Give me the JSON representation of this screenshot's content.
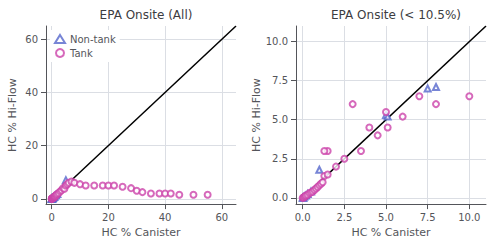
{
  "chart_data": [
    {
      "type": "scatter",
      "title": "EPA Onsite (All)",
      "xlabel": "HC % Canister",
      "ylabel": "HC % Hi-Flow",
      "xlim": [
        -2,
        65
      ],
      "ylim": [
        -2,
        65
      ],
      "xticks": [
        0,
        20,
        40,
        60
      ],
      "yticks": [
        0,
        20,
        40,
        60
      ],
      "grid": true,
      "legend": "upper left",
      "series": [
        {
          "type": "line",
          "color": "#000000",
          "line_style": "solid",
          "x": [
            0,
            65
          ],
          "values": [
            0,
            65
          ]
        },
        {
          "name": "Non-tank",
          "color": "#5566cc",
          "marker": "open_triangle",
          "x": [
            0.0,
            0.05,
            0.1,
            0.2,
            0.3,
            0.5,
            0.8,
            1.0,
            1.5,
            2.0,
            5.0
          ],
          "values": [
            0.0,
            0.05,
            0.08,
            0.15,
            0.25,
            0.4,
            0.7,
            0.9,
            1.3,
            1.8,
            7.0
          ]
        },
        {
          "name": "Tank",
          "color": "#cc44aa",
          "marker": "open_circle",
          "x": [
            0.0,
            0.05,
            0.1,
            0.15,
            0.2,
            0.3,
            0.4,
            0.5,
            0.6,
            0.7,
            0.8,
            0.9,
            1.0,
            1.1,
            1.2,
            1.5,
            1.7,
            2.0,
            2.5,
            3.0,
            3.5,
            4.0,
            4.5,
            5.0,
            5.5,
            6.0,
            7.0,
            8.0,
            10.0,
            12.0,
            15.0,
            18.0,
            20.0,
            22.0,
            25.0,
            28.0,
            30.0,
            32.0,
            35.0,
            38.0,
            40.0,
            42.0,
            45.0,
            50.0,
            55.0
          ],
          "values": [
            0.0,
            0.02,
            0.05,
            0.1,
            0.15,
            0.2,
            0.3,
            0.35,
            0.4,
            0.5,
            0.6,
            0.7,
            0.8,
            0.9,
            1.0,
            1.2,
            1.5,
            1.8,
            2.2,
            2.8,
            3.2,
            4.0,
            3.8,
            5.0,
            5.5,
            6.0,
            6.5,
            6.0,
            5.5,
            5.0,
            5.0,
            5.0,
            5.0,
            5.0,
            4.5,
            4.0,
            3.0,
            2.5,
            2.0,
            2.0,
            2.0,
            2.0,
            1.5,
            1.5,
            1.5
          ]
        }
      ]
    },
    {
      "type": "scatter",
      "title": "EPA Onsite (< 10.5%)",
      "xlabel": "HC % Canister",
      "ylabel": "HC % Hi-Flow",
      "xlim": [
        -0.4,
        11
      ],
      "ylim": [
        -0.4,
        11
      ],
      "xticks": [
        {
          "value": 0.0,
          "label": "0.0"
        },
        2.5,
        {
          "value": 5.0,
          "label": "5.0"
        },
        7.5,
        {
          "value": 10.0,
          "label": "10.0"
        }
      ],
      "yticks": [
        {
          "value": 0.0,
          "label": "0.0"
        },
        2.5,
        {
          "value": 5.0,
          "label": "5.0"
        },
        7.5,
        {
          "value": 10.0,
          "label": "10.0"
        }
      ],
      "grid": true,
      "series": [
        {
          "type": "line",
          "color": "#000000",
          "line_style": "solid",
          "x": [
            0,
            11
          ],
          "values": [
            0,
            11
          ]
        },
        {
          "name": "Non-tank",
          "color": "#5566cc",
          "marker": "open_triangle",
          "x": [
            0.0,
            0.05,
            0.1,
            0.2,
            0.3,
            0.5,
            1.0,
            5.0,
            5.1,
            7.5,
            8.0
          ],
          "values": [
            0.0,
            0.0,
            0.08,
            0.15,
            0.25,
            0.4,
            1.8,
            5.3,
            5.2,
            7.0,
            7.1
          ]
        },
        {
          "name": "Tank",
          "color": "#cc44aa",
          "marker": "open_circle",
          "x": [
            0.0,
            0.05,
            0.1,
            0.15,
            0.2,
            0.3,
            0.4,
            0.5,
            0.6,
            0.7,
            0.8,
            0.9,
            1.0,
            1.1,
            1.2,
            1.3,
            1.5,
            1.5,
            1.3,
            2.0,
            2.5,
            3.0,
            3.5,
            4.0,
            4.5,
            5.0,
            5.1,
            6.0,
            7.0,
            8.0,
            10.0
          ],
          "values": [
            0.0,
            0.02,
            0.05,
            0.1,
            0.15,
            0.2,
            0.3,
            0.35,
            0.4,
            0.5,
            0.6,
            0.7,
            0.8,
            0.9,
            1.0,
            1.4,
            1.5,
            3.0,
            3.0,
            2.0,
            2.5,
            6.0,
            3.0,
            4.5,
            4.0,
            5.5,
            4.5,
            5.2,
            6.5,
            6.0,
            6.5
          ]
        }
      ]
    }
  ]
}
